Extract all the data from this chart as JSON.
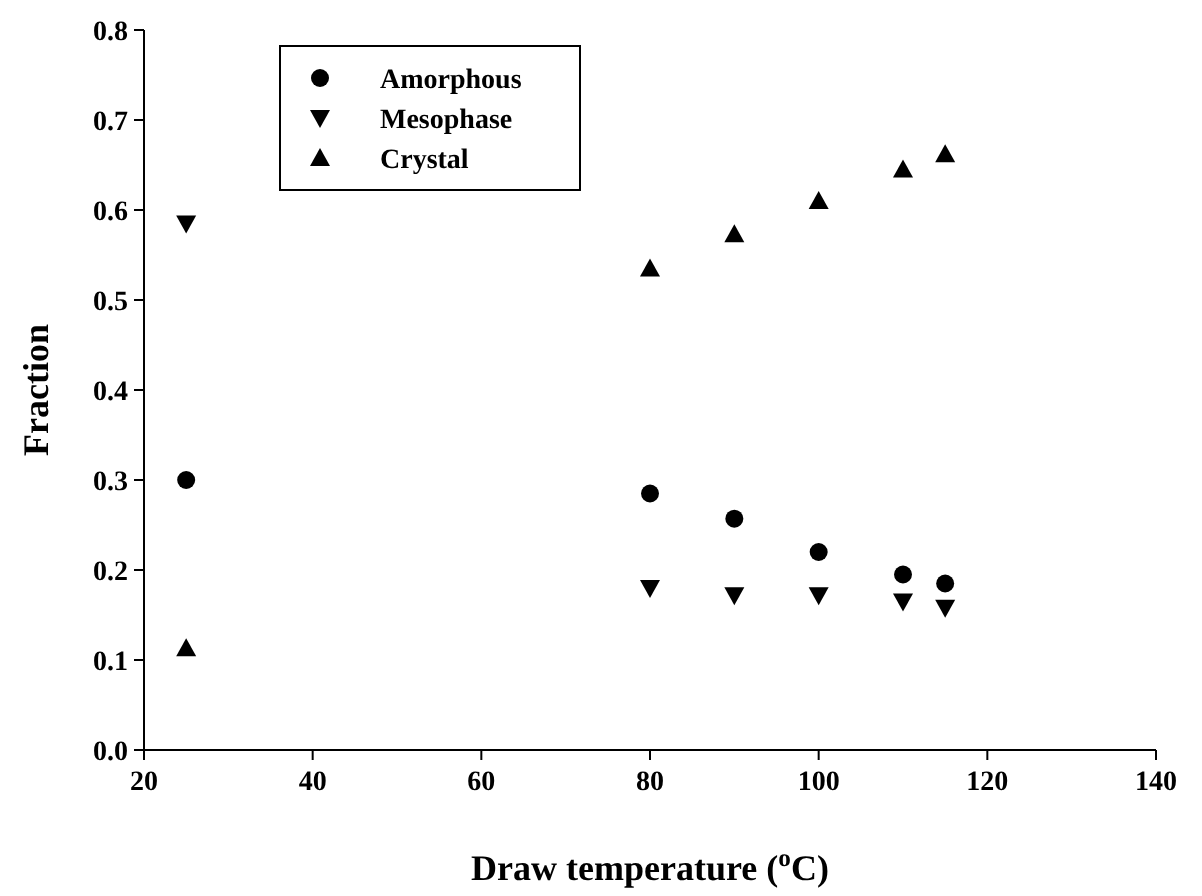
{
  "chart_data": {
    "type": "scatter",
    "xlabel": "Draw temperature ($^{o}$C)",
    "ylabel": "Fraction",
    "xlim": [
      20,
      140
    ],
    "xticks": [
      20,
      40,
      60,
      80,
      100,
      120,
      140
    ],
    "ylim": [
      0,
      0.8
    ],
    "yticks": [
      {
        "value": 0,
        "label": "0.0"
      },
      {
        "value": 0.1,
        "label": "0.1"
      },
      {
        "value": 0.2,
        "label": "0.2"
      },
      {
        "value": 0.3,
        "label": "0.3"
      },
      {
        "value": 0.4,
        "label": "0.4"
      },
      {
        "value": 0.5,
        "label": "0.5"
      },
      {
        "value": 0.6,
        "label": "0.6"
      },
      {
        "value": 0.7,
        "label": "0.7"
      },
      {
        "value": 0.8,
        "label": "0.8"
      }
    ],
    "x": [
      25,
      80,
      90,
      100,
      110,
      115
    ],
    "grid": false,
    "legend": "top left",
    "series": [
      {
        "name": "Amorphous",
        "color": "#000000",
        "marker": "circle",
        "values": [
          0.3,
          0.285,
          0.257,
          0.22,
          0.195,
          0.185
        ]
      },
      {
        "name": "Mesophase",
        "color": "#000000",
        "marker": "triangle-down",
        "values": [
          0.585,
          0.18,
          0.172,
          0.172,
          0.165,
          0.158
        ]
      },
      {
        "name": "Crystal",
        "color": "#000000",
        "marker": "triangle",
        "values": [
          0.113,
          0.535,
          0.573,
          0.61,
          0.645,
          0.662
        ]
      }
    ]
  }
}
